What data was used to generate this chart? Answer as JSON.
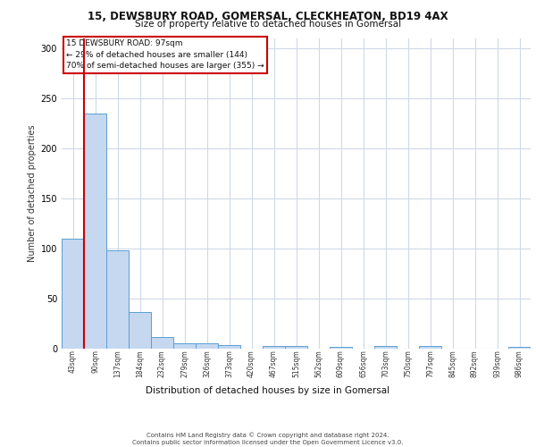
{
  "title1": "15, DEWSBURY ROAD, GOMERSAL, CLECKHEATON, BD19 4AX",
  "title2": "Size of property relative to detached houses in Gomersal",
  "xlabel": "Distribution of detached houses by size in Gomersal",
  "ylabel": "Number of detached properties",
  "bar_labels": [
    "43sqm",
    "90sqm",
    "137sqm",
    "184sqm",
    "232sqm",
    "279sqm",
    "326sqm",
    "373sqm",
    "420sqm",
    "467sqm",
    "515sqm",
    "562sqm",
    "609sqm",
    "656sqm",
    "703sqm",
    "750sqm",
    "797sqm",
    "845sqm",
    "892sqm",
    "939sqm",
    "986sqm"
  ],
  "bar_values": [
    110,
    235,
    98,
    37,
    12,
    5,
    5,
    4,
    0,
    3,
    3,
    0,
    2,
    0,
    3,
    0,
    3,
    0,
    0,
    0,
    2
  ],
  "bar_color": "#c5d8f0",
  "bar_edge_color": "#5a9fd4",
  "vline_color": "#cc0000",
  "annotation_text": "15 DEWSBURY ROAD: 97sqm\n← 29% of detached houses are smaller (144)\n70% of semi-detached houses are larger (355) →",
  "annotation_box_color": "#ffffff",
  "annotation_box_edge": "#cc0000",
  "ylim": [
    0,
    310
  ],
  "yticks": [
    0,
    50,
    100,
    150,
    200,
    250,
    300
  ],
  "footer": "Contains HM Land Registry data © Crown copyright and database right 2024.\nContains public sector information licensed under the Open Government Licence v3.0.",
  "bg_color": "#ffffff",
  "grid_color": "#d0d8e8"
}
